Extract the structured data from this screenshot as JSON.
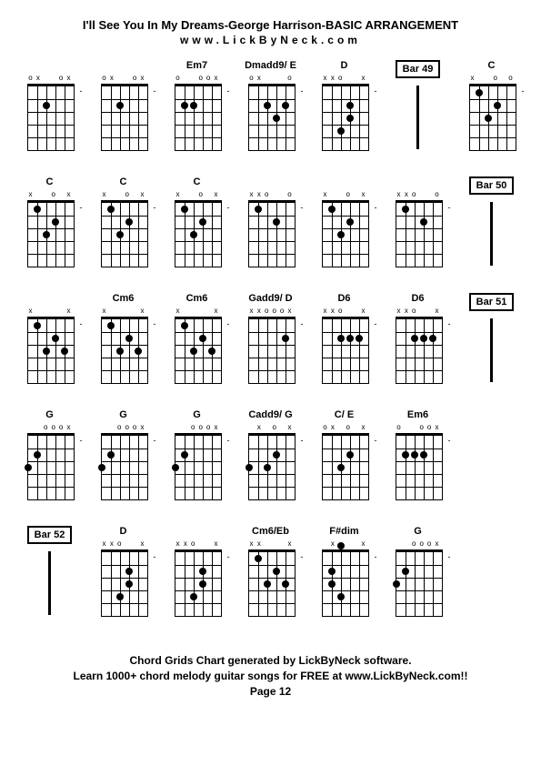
{
  "title": "I'll See You In My Dreams-George Harrison-BASIC ARRANGEMENT",
  "subtitle": "www.LickByNeck.com",
  "footer_line1": "Chord Grids Chart generated by LickByNeck software.",
  "footer_line2": "Learn 1000+ chord melody guitar songs for FREE at www.LickByNeck.com!!",
  "footer_line3": "Page 12",
  "diagram_style": {
    "strings": 6,
    "frets": 5,
    "width": 50,
    "height": 70,
    "finger_size": 8,
    "nut_thickness": 3,
    "line_color": "#000000",
    "bg_color": "#ffffff"
  },
  "cells": [
    {
      "type": "chord",
      "label": "",
      "markers": [
        "o",
        "x",
        "",
        "",
        "o",
        "x"
      ],
      "fingers": [
        [
          2,
          2
        ]
      ],
      "dash": "-"
    },
    {
      "type": "chord",
      "label": "",
      "markers": [
        "o",
        "x",
        "",
        "",
        "o",
        "x"
      ],
      "fingers": [
        [
          2,
          2
        ]
      ],
      "dash": "-"
    },
    {
      "type": "chord",
      "label": "Em7",
      "markers": [
        "o",
        "",
        "",
        "o",
        "o",
        "x"
      ],
      "fingers": [
        [
          1,
          2
        ],
        [
          2,
          2
        ]
      ],
      "dash": "-"
    },
    {
      "type": "chord",
      "label": "Dmadd9/ E",
      "markers": [
        "o",
        "x",
        "",
        "",
        "",
        "o"
      ],
      "fingers": [
        [
          2,
          2
        ],
        [
          3,
          3
        ],
        [
          4,
          2
        ]
      ],
      "dash": "-"
    },
    {
      "type": "chord",
      "label": "D",
      "markers": [
        "x",
        "x",
        "o",
        "",
        "",
        "x"
      ],
      "fingers": [
        [
          2,
          4
        ],
        [
          3,
          2
        ],
        [
          3,
          3
        ]
      ],
      "dash": "-"
    },
    {
      "type": "bar",
      "label": "Bar 49"
    },
    {
      "type": "chord",
      "label": "C",
      "markers": [
        "x",
        "",
        "",
        "o",
        "",
        "o"
      ],
      "fingers": [
        [
          1,
          1
        ],
        [
          2,
          3
        ],
        [
          3,
          2
        ]
      ],
      "dash": "-"
    },
    {
      "type": "chord",
      "label": "C",
      "markers": [
        "x",
        "",
        "",
        "o",
        "",
        "x"
      ],
      "fingers": [
        [
          1,
          1
        ],
        [
          2,
          3
        ],
        [
          3,
          2
        ]
      ],
      "dash": "-"
    },
    {
      "type": "chord",
      "label": "C",
      "markers": [
        "x",
        "",
        "",
        "o",
        "",
        "x"
      ],
      "fingers": [
        [
          1,
          1
        ],
        [
          2,
          3
        ],
        [
          3,
          2
        ]
      ],
      "dash": "-"
    },
    {
      "type": "chord",
      "label": "C",
      "markers": [
        "x",
        "",
        "",
        "o",
        "",
        "x"
      ],
      "fingers": [
        [
          1,
          1
        ],
        [
          2,
          3
        ],
        [
          3,
          2
        ]
      ],
      "dash": "-"
    },
    {
      "type": "chord",
      "label": "",
      "markers": [
        "x",
        "x",
        "o",
        "",
        "",
        "o"
      ],
      "fingers": [
        [
          1,
          1
        ],
        [
          3,
          2
        ]
      ],
      "dash": "-"
    },
    {
      "type": "chord",
      "label": "",
      "markers": [
        "x",
        "",
        "",
        "o",
        "",
        "x"
      ],
      "fingers": [
        [
          1,
          1
        ],
        [
          2,
          3
        ],
        [
          3,
          2
        ]
      ],
      "dash": "-"
    },
    {
      "type": "chord",
      "label": "",
      "markers": [
        "x",
        "x",
        "o",
        "",
        "",
        "o"
      ],
      "fingers": [
        [
          1,
          1
        ],
        [
          3,
          2
        ]
      ],
      "dash": "-"
    },
    {
      "type": "bar",
      "label": "Bar 50"
    },
    {
      "type": "chord",
      "label": "",
      "markers": [
        "x",
        "",
        "",
        "",
        "",
        "x"
      ],
      "fingers": [
        [
          1,
          1
        ],
        [
          2,
          3
        ],
        [
          3,
          2
        ],
        [
          4,
          3
        ]
      ],
      "dash": "-"
    },
    {
      "type": "chord",
      "label": "Cm6",
      "markers": [
        "x",
        "",
        "",
        "",
        "",
        "x"
      ],
      "fingers": [
        [
          1,
          1
        ],
        [
          2,
          3
        ],
        [
          3,
          2
        ],
        [
          4,
          3
        ]
      ],
      "dash": "-"
    },
    {
      "type": "chord",
      "label": "Cm6",
      "markers": [
        "x",
        "",
        "",
        "",
        "",
        "x"
      ],
      "fingers": [
        [
          1,
          1
        ],
        [
          2,
          3
        ],
        [
          3,
          2
        ],
        [
          4,
          3
        ]
      ],
      "dash": "-"
    },
    {
      "type": "chord",
      "label": "Gadd9/ D",
      "markers": [
        "x",
        "x",
        "o",
        "o",
        "o",
        "x"
      ],
      "fingers": [
        [
          4,
          2
        ]
      ],
      "dash": "-"
    },
    {
      "type": "chord",
      "label": "D6",
      "markers": [
        "x",
        "x",
        "o",
        "",
        "",
        "x"
      ],
      "fingers": [
        [
          2,
          2
        ],
        [
          3,
          2
        ],
        [
          4,
          2
        ]
      ],
      "dash": "-"
    },
    {
      "type": "chord",
      "label": "D6",
      "markers": [
        "x",
        "x",
        "o",
        "",
        "",
        "x"
      ],
      "fingers": [
        [
          2,
          2
        ],
        [
          3,
          2
        ],
        [
          4,
          2
        ]
      ],
      "dash": "-"
    },
    {
      "type": "bar",
      "label": "Bar 51"
    },
    {
      "type": "chord",
      "label": "G",
      "markers": [
        "",
        "",
        "o",
        "o",
        "o",
        "x"
      ],
      "fingers": [
        [
          1,
          2
        ],
        [
          0,
          3
        ]
      ],
      "dash": "-"
    },
    {
      "type": "chord",
      "label": "G",
      "markers": [
        "",
        "",
        "o",
        "o",
        "o",
        "x"
      ],
      "fingers": [
        [
          1,
          2
        ],
        [
          0,
          3
        ]
      ],
      "dash": "-"
    },
    {
      "type": "chord",
      "label": "G",
      "markers": [
        "",
        "",
        "o",
        "o",
        "o",
        "x"
      ],
      "fingers": [
        [
          1,
          2
        ],
        [
          0,
          3
        ]
      ],
      "dash": "-"
    },
    {
      "type": "chord",
      "label": "Cadd9/ G",
      "markers": [
        "",
        "x",
        "",
        "o",
        "",
        "x"
      ],
      "fingers": [
        [
          2,
          3
        ],
        [
          3,
          2
        ],
        [
          0,
          3
        ]
      ],
      "dash": "-"
    },
    {
      "type": "chord",
      "label": "C/ E",
      "markers": [
        "o",
        "x",
        "",
        "o",
        "",
        "x"
      ],
      "fingers": [
        [
          2,
          3
        ],
        [
          3,
          2
        ]
      ],
      "dash": "-"
    },
    {
      "type": "chord",
      "label": "Em6",
      "markers": [
        "o",
        "",
        "",
        "o",
        "o",
        "x"
      ],
      "fingers": [
        [
          1,
          2
        ],
        [
          2,
          2
        ],
        [
          3,
          2
        ]
      ],
      "dash": "-"
    },
    {
      "type": "empty"
    },
    {
      "type": "bar",
      "label": "Bar 52"
    },
    {
      "type": "chord",
      "label": "D",
      "markers": [
        "x",
        "x",
        "o",
        "",
        "",
        "x"
      ],
      "fingers": [
        [
          2,
          4
        ],
        [
          3,
          2
        ],
        [
          3,
          3
        ]
      ],
      "dash": "-"
    },
    {
      "type": "chord",
      "label": "",
      "markers": [
        "x",
        "x",
        "o",
        "",
        "",
        "x"
      ],
      "fingers": [
        [
          2,
          4
        ],
        [
          3,
          2
        ],
        [
          3,
          3
        ]
      ],
      "dash": "-"
    },
    {
      "type": "chord",
      "label": "Cm6/Eb",
      "markers": [
        "x",
        "x",
        "",
        "",
        "",
        "x"
      ],
      "fingers": [
        [
          1,
          1
        ],
        [
          2,
          3
        ],
        [
          3,
          2
        ],
        [
          4,
          3
        ]
      ],
      "dash": "-"
    },
    {
      "type": "chord",
      "label": "F#dim",
      "markers": [
        "",
        "x",
        "",
        "",
        "",
        "x"
      ],
      "fingers": [
        [
          1,
          2
        ],
        [
          1,
          3
        ],
        [
          2,
          4
        ],
        [
          2,
          0
        ]
      ],
      "dash": "-"
    },
    {
      "type": "chord",
      "label": "G",
      "markers": [
        "",
        "",
        "o",
        "o",
        "o",
        "x"
      ],
      "fingers": [
        [
          1,
          2
        ],
        [
          0,
          3
        ]
      ],
      "dash": "-"
    },
    {
      "type": "empty"
    }
  ]
}
